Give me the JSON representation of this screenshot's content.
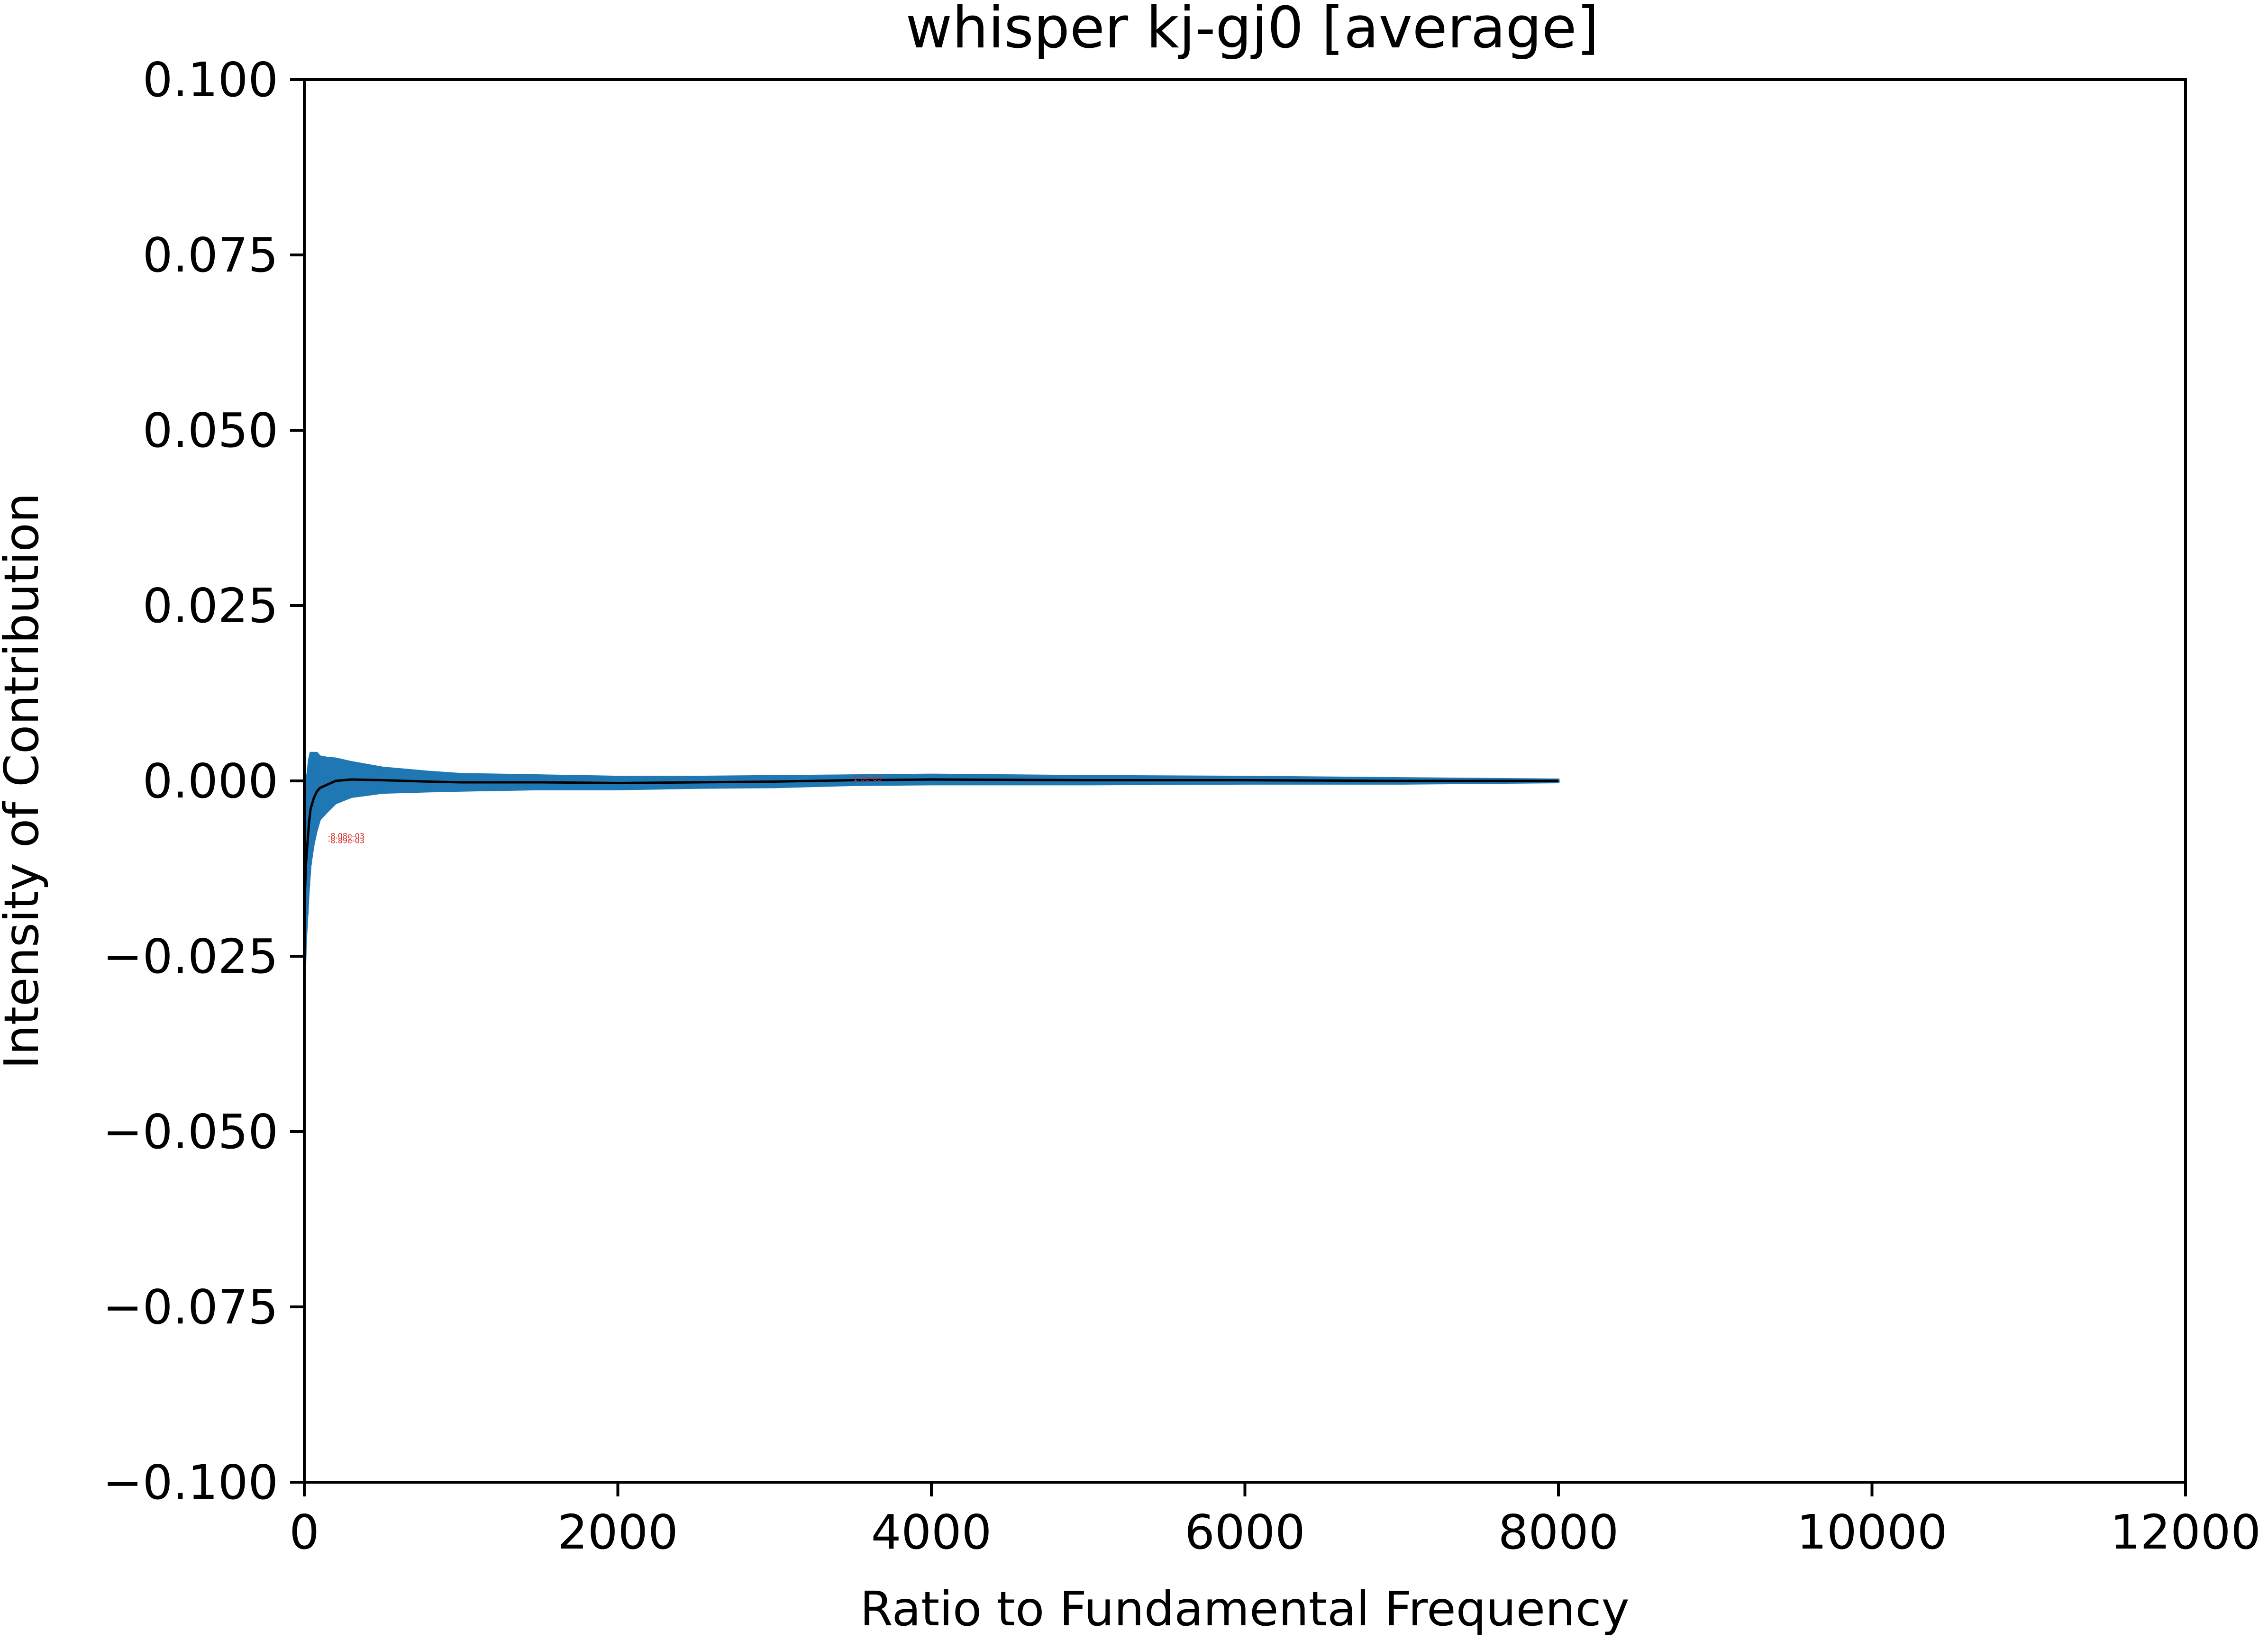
{
  "chart_data": {
    "type": "line",
    "title": "whisper kj-gj0 [average]",
    "xlabel": "Ratio to Fundamental Frequency",
    "ylabel": "Intensity of Contribution",
    "xlim": [
      0,
      12000
    ],
    "ylim": [
      -0.1,
      0.1
    ],
    "xticks": [
      0,
      2000,
      4000,
      6000,
      8000,
      10000,
      12000
    ],
    "xtick_labels": [
      "0",
      "2000",
      "4000",
      "6000",
      "8000",
      "10000",
      "12000"
    ],
    "yticks": [
      0.1,
      0.075,
      0.05,
      0.025,
      0.0,
      -0.025,
      -0.05,
      -0.075,
      -0.1
    ],
    "ytick_labels": [
      "0.100",
      "0.075",
      "0.050",
      "0.025",
      "0.000",
      "−0.025",
      "−0.050",
      "−0.075",
      "−0.100"
    ],
    "grid": false,
    "series": [
      {
        "color": "#000000",
        "x": [
          1,
          10,
          20,
          30,
          40,
          60,
          80,
          100,
          150,
          200,
          300,
          500,
          800,
          1000,
          1500,
          2000,
          2500,
          3000,
          3500,
          4000,
          5000,
          6000,
          7000,
          8000
        ],
        "y": [
          -0.018,
          -0.012,
          -0.009,
          -0.006,
          -0.004,
          -0.0025,
          -0.0015,
          -0.001,
          -0.0005,
          0.0,
          0.0002,
          0.0001,
          -0.0001,
          -0.0002,
          -0.0002,
          -0.0003,
          -0.0002,
          -0.0001,
          0.0001,
          0.0002,
          0.0001,
          0.0001,
          0.0,
          0.0
        ],
        "error_color": "#1f77b4",
        "yerr": [
          0.012,
          0.011,
          0.01,
          0.009,
          0.008,
          0.0065,
          0.0055,
          0.0045,
          0.0038,
          0.0032,
          0.0025,
          0.0018,
          0.0014,
          0.0012,
          0.001,
          0.0009,
          0.0008,
          0.0008,
          0.0007,
          0.0007,
          0.0006,
          0.0005,
          0.0004,
          0.0002
        ]
      }
    ],
    "annotations": [
      {
        "text": "1.0e-03",
        "x": 3500,
        "y": 0.0
      },
      {
        "text": "-8.08e-03",
        "x": 150,
        "y": -0.0082
      },
      {
        "text": "-8.89e-03",
        "x": 150,
        "y": -0.0089
      }
    ]
  }
}
